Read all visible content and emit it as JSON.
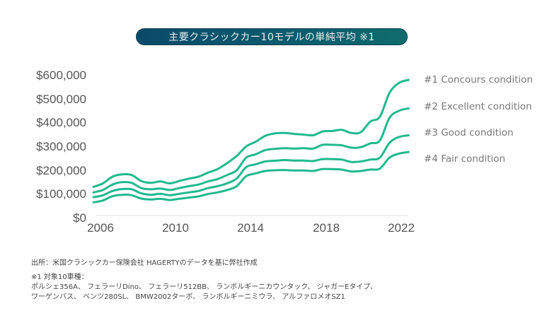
{
  "chart_data": {
    "type": "line",
    "title": "主要クラシックカー10モデルの単純平均 ※1",
    "xlabel": "",
    "ylabel": "",
    "xlim": [
      2006,
      2022.6
    ],
    "ylim": [
      0,
      600000
    ],
    "x_ticks": [
      2006,
      2010,
      2014,
      2018,
      2022
    ],
    "x_tick_labels": [
      "2006",
      "2010",
      "2014",
      "2018",
      "2022"
    ],
    "y_ticks": [
      0,
      100000,
      200000,
      300000,
      400000,
      500000,
      600000
    ],
    "y_tick_labels": [
      "$0",
      "$100,000",
      "$200,000",
      "$300,000",
      "$400,000",
      "$500,000",
      "$600,000"
    ],
    "grid": false,
    "legend_placement": "right",
    "line_color": "#1fb98e",
    "x": [
      2006.0,
      2006.5,
      2007.0,
      2007.5,
      2008.0,
      2008.5,
      2009.0,
      2009.5,
      2010.0,
      2010.5,
      2011.0,
      2011.5,
      2012.0,
      2012.5,
      2013.0,
      2013.5,
      2014.0,
      2014.5,
      2015.0,
      2015.5,
      2016.0,
      2016.5,
      2017.0,
      2017.5,
      2018.0,
      2018.5,
      2019.0,
      2019.5,
      2020.0,
      2020.5,
      2021.0,
      2021.5,
      2022.0,
      2022.5
    ],
    "series": [
      {
        "name": "#1 Concours condition",
        "values": [
          135000,
          150000,
          178000,
          188000,
          185000,
          160000,
          152000,
          158000,
          150000,
          160000,
          170000,
          178000,
          195000,
          210000,
          235000,
          265000,
          305000,
          325000,
          350000,
          360000,
          362000,
          358000,
          355000,
          352000,
          368000,
          370000,
          375000,
          362000,
          365000,
          410000,
          430000,
          530000,
          572000,
          585000
        ]
      },
      {
        "name": "#2 Excellent condition",
        "values": [
          112000,
          122000,
          145000,
          155000,
          152000,
          130000,
          125000,
          128000,
          122000,
          130000,
          138000,
          145000,
          158000,
          168000,
          185000,
          205000,
          258000,
          272000,
          290000,
          295000,
          298000,
          296000,
          298000,
          296000,
          312000,
          312000,
          310000,
          300000,
          302000,
          318000,
          330000,
          425000,
          455000,
          465000
        ]
      },
      {
        "name": "#3 Good condition",
        "values": [
          92000,
          100000,
          118000,
          126000,
          125000,
          108000,
          102000,
          106000,
          100000,
          106000,
          112000,
          118000,
          130000,
          138000,
          150000,
          170000,
          218000,
          230000,
          242000,
          245000,
          248000,
          246000,
          246000,
          244000,
          252000,
          252000,
          250000,
          240000,
          242000,
          250000,
          258000,
          320000,
          345000,
          352000
        ]
      },
      {
        "name": "#4 Fair condition",
        "values": [
          70000,
          78000,
          96000,
          102000,
          100000,
          86000,
          82000,
          85000,
          80000,
          85000,
          90000,
          95000,
          105000,
          112000,
          122000,
          138000,
          180000,
          192000,
          202000,
          205000,
          206000,
          204000,
          204000,
          202000,
          210000,
          210000,
          208000,
          200000,
          202000,
          208000,
          212000,
          258000,
          275000,
          282000
        ]
      }
    ]
  },
  "footer": {
    "source": "出所：米国クラシックカー保険会社 HAGERTYのデータを基に弊社作成",
    "note_title": "※1 対象10車種：",
    "note_line1": "ポルシェ356A、 フェラーリDino、 フェラーリ512BB、 ランボルギーニカウンタック、 ジャガーEタイプ、",
    "note_line2": "ワーゲンバス、 ベンツ280SL、 BMW2002ターボ、 ランボルギーニミウラ、 アルファロメオSZ1"
  }
}
